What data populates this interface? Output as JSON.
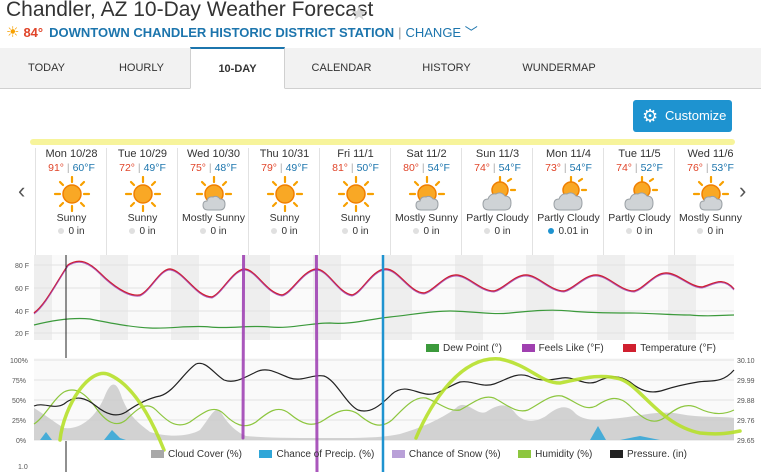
{
  "header": {
    "title": "Chandler, AZ 10-Day Weather Forecast",
    "current_temp": "84°",
    "station": "DOWNTOWN CHANDLER HISTORIC DISTRICT STATION",
    "change_label": "CHANGE"
  },
  "tabs": [
    {
      "label": "TODAY"
    },
    {
      "label": "HOURLY"
    },
    {
      "label": "10-DAY"
    },
    {
      "label": "CALENDAR"
    },
    {
      "label": "HISTORY"
    },
    {
      "label": "WUNDERMAP"
    }
  ],
  "customize_label": "Customize",
  "days": [
    {
      "name": "Mon 10/28",
      "hi": "91°",
      "lo": "60°F",
      "icon": "sun-icon",
      "cond": "Sunny",
      "precip": "0 in"
    },
    {
      "name": "Tue 10/29",
      "hi": "72°",
      "lo": "49°F",
      "icon": "sun-icon",
      "cond": "Sunny",
      "precip": "0 in"
    },
    {
      "name": "Wed 10/30",
      "hi": "75°",
      "lo": "48°F",
      "icon": "mostly-sunny-icon",
      "cond": "Mostly Sunny",
      "precip": "0 in"
    },
    {
      "name": "Thu 10/31",
      "hi": "79°",
      "lo": "49°F",
      "icon": "sun-icon",
      "cond": "Sunny",
      "precip": "0 in"
    },
    {
      "name": "Fri 11/1",
      "hi": "81°",
      "lo": "50°F",
      "icon": "sun-icon",
      "cond": "Sunny",
      "precip": "0 in"
    },
    {
      "name": "Sat 11/2",
      "hi": "80°",
      "lo": "54°F",
      "icon": "mostly-sunny-icon",
      "cond": "Mostly Sunny",
      "precip": "0 in"
    },
    {
      "name": "Sun 11/3",
      "hi": "74°",
      "lo": "54°F",
      "icon": "partly-cloudy-icon",
      "cond": "Partly Cloudy",
      "precip": "0 in"
    },
    {
      "name": "Mon 11/4",
      "hi": "73°",
      "lo": "54°F",
      "icon": "partly-cloudy-icon",
      "cond": "Partly Cloudy",
      "precip": "0.01 in"
    },
    {
      "name": "Tue 11/5",
      "hi": "74°",
      "lo": "52°F",
      "icon": "partly-cloudy-icon",
      "cond": "Partly Cloudy",
      "precip": "0 in"
    },
    {
      "name": "Wed 11/6",
      "hi": "76°",
      "lo": "53°F",
      "icon": "mostly-sunny-icon",
      "cond": "Mostly Sunny",
      "precip": "0 in"
    }
  ],
  "temp_chart": {
    "y_ticks": [
      "80 F",
      "60 F",
      "40 F",
      "20 F"
    ],
    "legend": [
      {
        "label": "Dew Point (°)",
        "color": "#3c9a3c"
      },
      {
        "label": "Feels Like (°F)",
        "color": "#a040b0"
      },
      {
        "label": "Temperature (°F)",
        "color": "#d0202f"
      }
    ]
  },
  "humidity_chart": {
    "y_ticks_left": [
      "100%",
      "75%",
      "50%",
      "25%",
      "0%"
    ],
    "y_ticks_right": [
      "30.10",
      "29.99",
      "29.88",
      "29.76",
      "29.65"
    ],
    "bottom_tick": "1.0",
    "legend": [
      {
        "label": "Cloud Cover (%)",
        "color": "#a8a8a8"
      },
      {
        "label": "Chance of Precip. (%)",
        "color": "#2fa6d8"
      },
      {
        "label": "Chance of Snow (%)",
        "color": "#b9a0d8"
      },
      {
        "label": "Humidity (%)",
        "color": "#8dc63f"
      },
      {
        "label": "Pressure. (in)",
        "color": "#222222"
      }
    ]
  }
}
